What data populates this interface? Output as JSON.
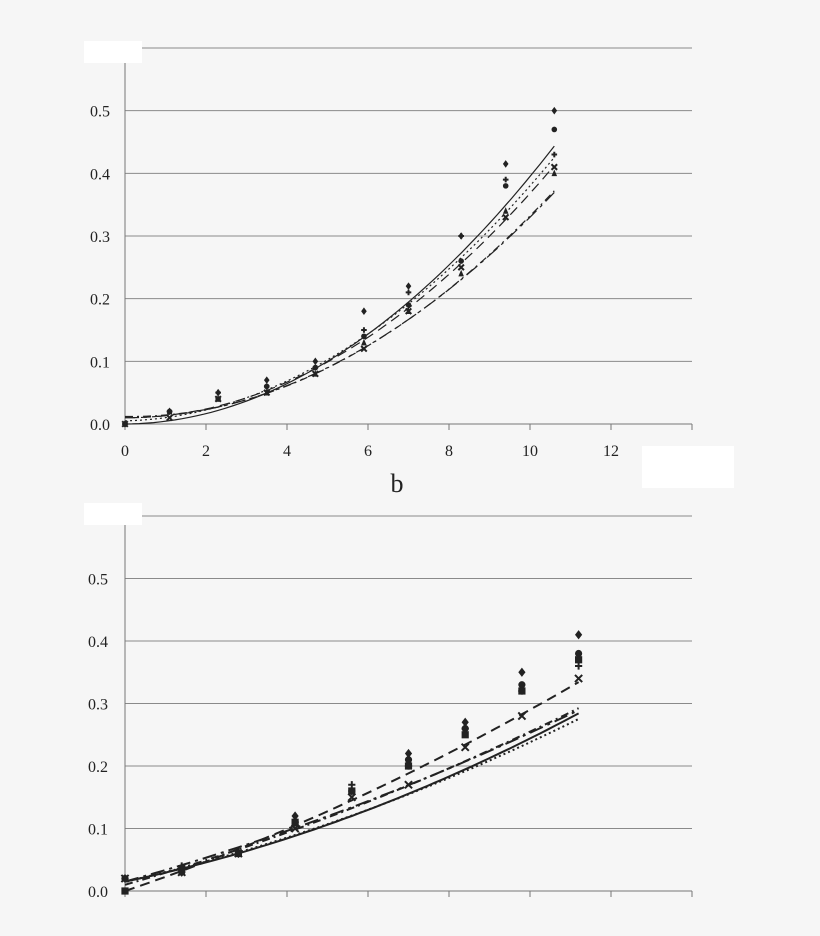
{
  "figure": {
    "panel_label": "b"
  },
  "chart_data": [
    {
      "type": "line",
      "xlim": [
        0,
        14
      ],
      "ylim": [
        0,
        0.5
      ],
      "xticks": [
        "0",
        "2",
        "4",
        "6",
        "8",
        "10",
        "12"
      ],
      "yticks": [
        "0.0",
        "0.1",
        "0.2",
        "0.3",
        "0.4",
        "0.5"
      ],
      "grid": true,
      "series": [
        {
          "style": "solid",
          "marker": "diamond",
          "curve": [
            0.0,
            0.0005,
            0.0039
          ],
          "points": [
            [
              0,
              0
            ],
            [
              1.1,
              0.02
            ],
            [
              2.3,
              0.05
            ],
            [
              3.5,
              0.07
            ],
            [
              4.7,
              0.1
            ],
            [
              5.9,
              0.18
            ],
            [
              7.0,
              0.22
            ],
            [
              8.3,
              0.3
            ],
            [
              9.4,
              0.415
            ],
            [
              10.6,
              0.5
            ]
          ]
        },
        {
          "style": "dotted",
          "marker": "circle",
          "curve": [
            0.005,
            0.0015,
            0.0036
          ],
          "points": [
            [
              0,
              0
            ],
            [
              1.1,
              0.02
            ],
            [
              2.3,
              0.04
            ],
            [
              3.5,
              0.06
            ],
            [
              4.7,
              0.09
            ],
            [
              5.9,
              0.14
            ],
            [
              7.0,
              0.19
            ],
            [
              8.3,
              0.26
            ],
            [
              9.4,
              0.38
            ],
            [
              10.6,
              0.47
            ]
          ]
        },
        {
          "style": "dashed",
          "marker": "plus",
          "curve": [
            0.01,
            -0.0002,
            0.0036
          ],
          "points": [
            [
              0,
              0
            ],
            [
              1.1,
              0.02
            ],
            [
              2.3,
              0.05
            ],
            [
              3.5,
              0.06
            ],
            [
              4.7,
              0.09
            ],
            [
              5.9,
              0.15
            ],
            [
              7.0,
              0.21
            ],
            [
              8.3,
              0.3
            ],
            [
              9.4,
              0.39
            ],
            [
              10.6,
              0.43
            ]
          ]
        },
        {
          "style": "dash-dot",
          "marker": "x",
          "curve": [
            0.012,
            -0.001,
            0.0033
          ],
          "points": [
            [
              0,
              0
            ],
            [
              1.1,
              0.01
            ],
            [
              2.3,
              0.04
            ],
            [
              3.5,
              0.05
            ],
            [
              4.7,
              0.08
            ],
            [
              5.9,
              0.12
            ],
            [
              7.0,
              0.18
            ],
            [
              8.3,
              0.25
            ],
            [
              9.4,
              0.33
            ],
            [
              10.6,
              0.41
            ]
          ]
        },
        {
          "style": "long-dash-dot",
          "marker": "triangle",
          "curve": [
            0.01,
            0.0,
            0.0032
          ],
          "points": [
            [
              0,
              0
            ],
            [
              1.1,
              0.02
            ],
            [
              2.3,
              0.04
            ],
            [
              3.5,
              0.05
            ],
            [
              4.7,
              0.08
            ],
            [
              5.9,
              0.13
            ],
            [
              7.0,
              0.18
            ],
            [
              8.3,
              0.24
            ],
            [
              9.4,
              0.34
            ],
            [
              10.6,
              0.4
            ]
          ]
        }
      ]
    },
    {
      "type": "line",
      "xlim": [
        0,
        14
      ],
      "ylim": [
        0,
        0.5
      ],
      "xticks": [],
      "yticks": [
        "0.0",
        "0.1",
        "0.2",
        "0.3",
        "0.4",
        "0.5"
      ],
      "grid": true,
      "series": [
        {
          "style": "solid",
          "marker": "diamond",
          "curve": [
            0.015,
            0.0135,
            0.00094
          ],
          "points": [
            [
              0,
              0.02
            ],
            [
              1.4,
              0.03
            ],
            [
              2.8,
              0.06
            ],
            [
              4.2,
              0.12
            ],
            [
              5.6,
              0.16
            ],
            [
              7.0,
              0.22
            ],
            [
              8.4,
              0.27
            ],
            [
              9.8,
              0.35
            ],
            [
              11.2,
              0.41
            ]
          ]
        },
        {
          "style": "dotted",
          "marker": "circle",
          "curve": [
            0.015,
            0.0145,
            0.00078
          ],
          "points": [
            [
              0,
              0.02
            ],
            [
              1.4,
              0.03
            ],
            [
              2.8,
              0.06
            ],
            [
              4.2,
              0.11
            ],
            [
              5.6,
              0.16
            ],
            [
              7.0,
              0.21
            ],
            [
              8.4,
              0.26
            ],
            [
              9.8,
              0.33
            ],
            [
              11.2,
              0.38
            ]
          ]
        },
        {
          "style": "dashed",
          "marker": "square",
          "curve": [
            0.0,
            0.022,
            0.0007
          ],
          "points": [
            [
              0,
              0
            ],
            [
              1.4,
              0.035
            ],
            [
              2.8,
              0.06
            ],
            [
              4.2,
              0.11
            ],
            [
              5.6,
              0.16
            ],
            [
              7.0,
              0.2
            ],
            [
              8.4,
              0.25
            ],
            [
              9.8,
              0.32
            ],
            [
              11.2,
              0.37
            ]
          ]
        },
        {
          "style": "dash-dot",
          "marker": "plus",
          "curve": [
            0.01,
            0.0185,
            0.0006
          ],
          "points": [
            [
              0,
              0.02
            ],
            [
              1.4,
              0.04
            ],
            [
              2.8,
              0.06
            ],
            [
              4.2,
              0.11
            ],
            [
              5.6,
              0.17
            ],
            [
              7.0,
              0.2
            ],
            [
              8.4,
              0.26
            ],
            [
              9.8,
              0.32
            ],
            [
              11.2,
              0.36
            ]
          ]
        },
        {
          "style": "long-dash-dot",
          "marker": "x",
          "curve": [
            0.015,
            0.018,
            0.00058
          ],
          "points": [
            [
              0,
              0.02
            ],
            [
              1.4,
              0.03
            ],
            [
              2.8,
              0.06
            ],
            [
              4.2,
              0.1
            ],
            [
              5.6,
              0.15
            ],
            [
              7.0,
              0.17
            ],
            [
              8.4,
              0.23
            ],
            [
              9.8,
              0.28
            ],
            [
              11.2,
              0.34
            ]
          ]
        }
      ]
    }
  ]
}
